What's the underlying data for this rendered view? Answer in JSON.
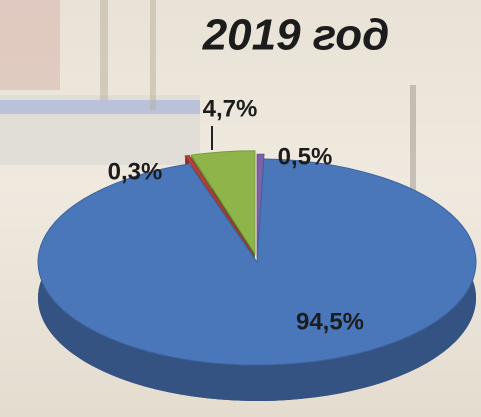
{
  "chart_data": {
    "type": "pie",
    "title": "2019 год",
    "values": [
      0.5,
      94.5,
      0.3,
      4.7
    ],
    "value_labels": [
      "0,5%",
      "94,5%",
      "0,3%",
      "4,7%"
    ],
    "colors": [
      "#7d62a8",
      "#4a76ba",
      "#b8403a",
      "#8fb54a"
    ]
  }
}
